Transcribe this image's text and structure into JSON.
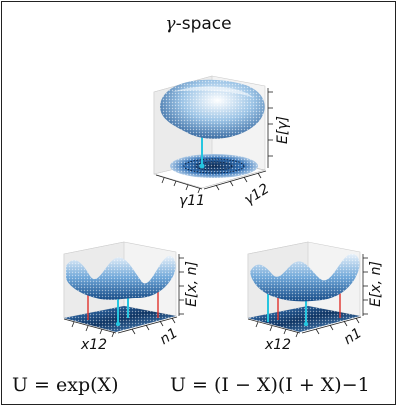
{
  "title": {
    "prefix": "γ",
    "suffix": "-space"
  },
  "top_plot": {
    "xlabel": "γ11",
    "ylabel": "γ12",
    "zlabel": "E[γ]",
    "surface_color": "#2f6fb5",
    "line_color": "#25c6e0"
  },
  "bottom_left_plot": {
    "xlabel": "x12",
    "ylabel": "n1",
    "zlabel": "E[x, n]",
    "surface_color": "#2f6fb5",
    "red_line_color": "#e0312b",
    "cyan_line_color": "#25c6e0"
  },
  "bottom_right_plot": {
    "xlabel": "x12",
    "ylabel": "n1",
    "zlabel": "E[x, n]",
    "surface_color": "#2f6fb5",
    "red_line_color": "#e0312b",
    "cyan_line_color": "#25c6e0"
  },
  "formulas": {
    "left": "U = exp(X)",
    "right": "U = (I − X)(I + X)−1"
  }
}
